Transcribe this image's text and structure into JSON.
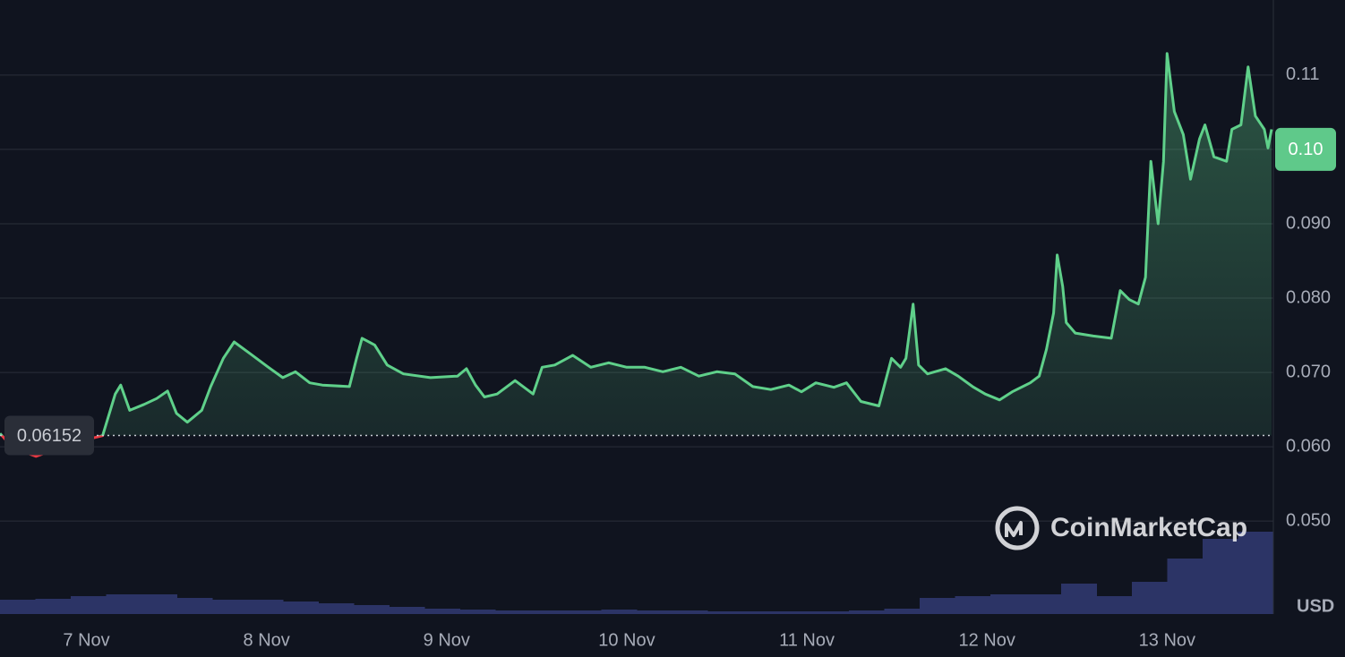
{
  "chart_data": {
    "type": "line",
    "x": [
      6.52,
      6.59,
      6.72,
      6.92,
      7.09,
      7.16,
      7.19,
      7.24,
      7.32,
      7.39,
      7.45,
      7.5,
      7.56,
      7.64,
      7.69,
      7.76,
      7.82,
      7.91,
      8.01,
      8.09,
      8.16,
      8.24,
      8.31,
      8.46,
      8.5,
      8.53,
      8.6,
      8.67,
      8.76,
      8.91,
      9.06,
      9.11,
      9.16,
      9.21,
      9.28,
      9.38,
      9.48,
      9.53,
      9.6,
      9.7,
      9.8,
      9.9,
      10.0,
      10.1,
      10.2,
      10.3,
      10.4,
      10.5,
      10.6,
      10.7,
      10.8,
      10.9,
      10.97,
      11.05,
      11.15,
      11.22,
      11.3,
      11.4,
      11.47,
      11.52,
      11.55,
      11.59,
      11.62,
      11.67,
      11.77,
      11.84,
      11.92,
      11.99,
      12.07,
      12.14,
      12.24,
      12.29,
      12.33,
      12.37,
      12.39,
      12.42,
      12.44,
      12.49,
      12.59,
      12.69,
      12.74,
      12.79,
      12.84,
      12.88,
      12.91,
      12.95,
      12.98,
      13.0,
      13.04,
      13.09,
      13.13,
      13.18,
      13.21,
      13.26,
      13.33,
      13.36,
      13.41,
      13.45,
      13.49,
      13.54,
      13.56,
      13.58
    ],
    "values": [
      0.0618,
      0.0599,
      0.0587,
      0.0605,
      0.0615,
      0.0671,
      0.0683,
      0.0649,
      0.0657,
      0.0665,
      0.0675,
      0.0645,
      0.0633,
      0.0649,
      0.0681,
      0.0719,
      0.0741,
      0.0725,
      0.0707,
      0.0693,
      0.0701,
      0.0686,
      0.0683,
      0.0681,
      0.0719,
      0.0746,
      0.0737,
      0.071,
      0.0698,
      0.0693,
      0.0695,
      0.0705,
      0.0683,
      0.0667,
      0.0671,
      0.0689,
      0.0671,
      0.0707,
      0.071,
      0.0723,
      0.0707,
      0.0713,
      0.0707,
      0.0707,
      0.0701,
      0.0707,
      0.0695,
      0.0701,
      0.0698,
      0.0681,
      0.0677,
      0.0683,
      0.0674,
      0.0686,
      0.068,
      0.0686,
      0.0661,
      0.0655,
      0.0719,
      0.0707,
      0.0719,
      0.0792,
      0.071,
      0.0698,
      0.0705,
      0.0695,
      0.0681,
      0.0671,
      0.0663,
      0.0674,
      0.0686,
      0.0695,
      0.0731,
      0.078,
      0.0858,
      0.0816,
      0.0767,
      0.0753,
      0.0749,
      0.0746,
      0.081,
      0.0798,
      0.0792,
      0.0828,
      0.0984,
      0.09,
      0.0984,
      0.1129,
      0.1051,
      0.102,
      0.096,
      0.1014,
      0.1033,
      0.099,
      0.0984,
      0.1027,
      0.1033,
      0.1111,
      0.1045,
      0.1027,
      0.1002,
      0.1027
    ],
    "line_color": "#5fd08a",
    "down_color": "#ea3943",
    "xlim": [
      6.52,
      13.59
    ],
    "xticks": [
      {
        "value": 7,
        "label": "7 Nov"
      },
      {
        "value": 8,
        "label": "8 Nov"
      },
      {
        "value": 9,
        "label": "9 Nov"
      },
      {
        "value": 10,
        "label": "10 Nov"
      },
      {
        "value": 11,
        "label": "11 Nov"
      },
      {
        "value": 12,
        "label": "12 Nov"
      },
      {
        "value": 13,
        "label": "13 Nov"
      }
    ],
    "ylim": [
      0.0375,
      0.1201
    ],
    "yticks": [
      {
        "value": 0.05,
        "label": "0.050"
      },
      {
        "value": 0.06,
        "label": "0.060"
      },
      {
        "value": 0.07,
        "label": "0.070"
      },
      {
        "value": 0.08,
        "label": "0.080"
      },
      {
        "value": 0.09,
        "label": "0.090"
      },
      {
        "value": 0.1,
        "label": "0.10"
      },
      0.11
    ],
    "grid": true,
    "baseline": {
      "value": 0.06152,
      "label": "0.06152"
    },
    "current_price": {
      "value": 0.1,
      "label": "0.10",
      "color": "#5fc98a"
    },
    "currency": "USD",
    "watermark": "CoinMarketCap",
    "volume": {
      "values": [
        16,
        17,
        20,
        22,
        22,
        18,
        16,
        16,
        14,
        12,
        10,
        8,
        6,
        5,
        4,
        4,
        4,
        5,
        4,
        4,
        3,
        3,
        3,
        3,
        4,
        6,
        18,
        20,
        22,
        22,
        34,
        20,
        36,
        62,
        84,
        92
      ],
      "color": "#2c3466",
      "ylim": [
        0,
        100
      ]
    }
  }
}
